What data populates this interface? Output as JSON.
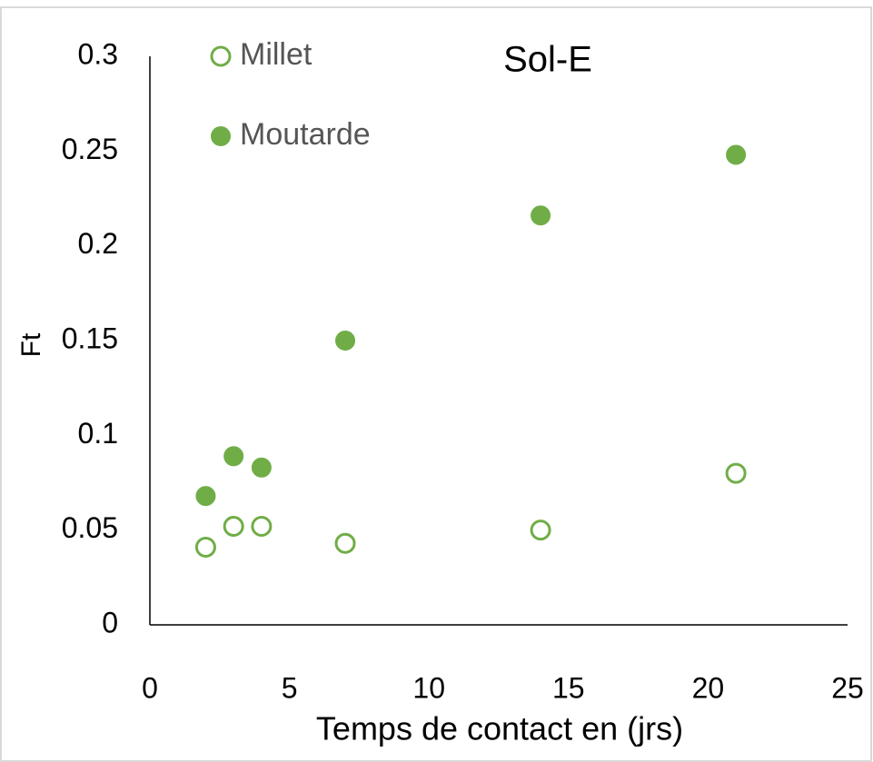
{
  "chart_data": {
    "type": "scatter",
    "title": "Sol-E",
    "x_label": "Temps de contact en (jrs)",
    "y_label": "Ft",
    "series": [
      {
        "name": "Millet",
        "color": "#70ad47",
        "filled": false,
        "x": [
          2,
          3,
          4,
          7,
          14,
          21
        ],
        "values": [
          0.041,
          0.052,
          0.052,
          0.043,
          0.05,
          0.08
        ]
      },
      {
        "name": "Moutarde",
        "color": "#70ad47",
        "filled": true,
        "x": [
          2,
          3,
          4,
          7,
          14,
          21
        ],
        "values": [
          0.068,
          0.089,
          0.083,
          0.15,
          0.216,
          0.248
        ]
      }
    ],
    "xlim": [
      0,
      25
    ],
    "xticks": [
      0,
      5,
      10,
      15,
      20,
      25
    ],
    "ylim": [
      0,
      0.3
    ],
    "yticks": [
      0,
      0.05,
      0.1,
      0.15,
      0.2,
      0.25,
      0.3
    ],
    "grid": false,
    "legend": "upper left"
  }
}
